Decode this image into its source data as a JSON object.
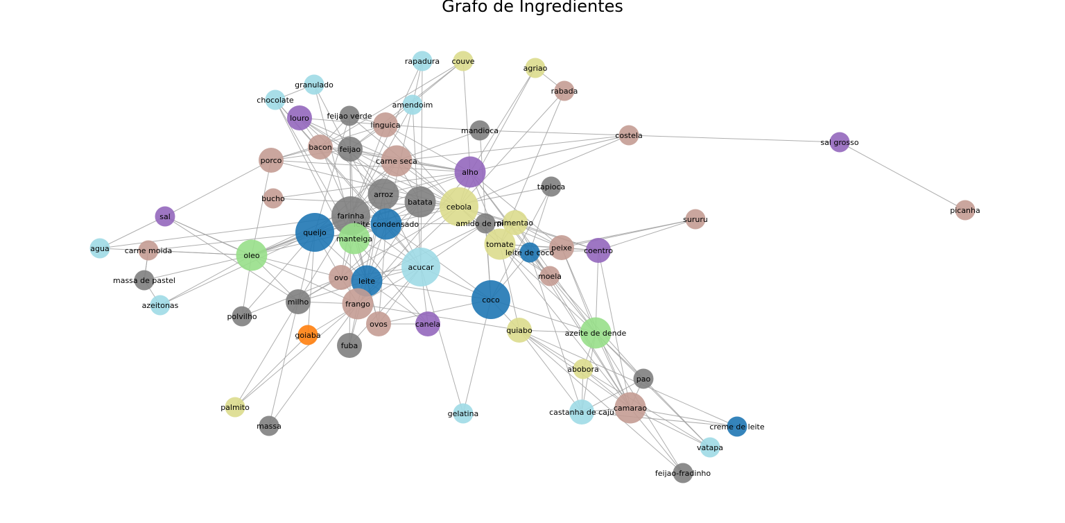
{
  "title": "Grafo de Ingredientes",
  "palette": {
    "gray": "#7f7f7f",
    "blue": "#1f77b4",
    "cyan": "#9edae5",
    "purple": "#9467bd",
    "brown": "#c49c94",
    "green": "#98df8a",
    "olive": "#dbdb8d",
    "orange": "#ff7f0e",
    "edge": "#a0a0a0"
  },
  "nodes": [
    {
      "id": "rapadura",
      "label": "rapadura",
      "color": "cyan",
      "size": "s"
    },
    {
      "id": "couve",
      "label": "couve",
      "color": "olive",
      "size": "s"
    },
    {
      "id": "agriao",
      "label": "agriao",
      "color": "olive",
      "size": "s"
    },
    {
      "id": "granulado",
      "label": "granulado",
      "color": "cyan",
      "size": "s"
    },
    {
      "id": "rabada",
      "label": "rabada",
      "color": "brown",
      "size": "s"
    },
    {
      "id": "chocolate",
      "label": "chocolate",
      "color": "cyan",
      "size": "s"
    },
    {
      "id": "amendoim",
      "label": "amendoim",
      "color": "cyan",
      "size": "s"
    },
    {
      "id": "feijao_verde",
      "label": "feijao verde",
      "color": "gray",
      "size": "s"
    },
    {
      "id": "louro",
      "label": "louro",
      "color": "purple",
      "size": "m"
    },
    {
      "id": "linguica",
      "label": "linguica",
      "color": "brown",
      "size": "m"
    },
    {
      "id": "mandioca",
      "label": "mandioca",
      "color": "gray",
      "size": "s"
    },
    {
      "id": "costela",
      "label": "costela",
      "color": "brown",
      "size": "s"
    },
    {
      "id": "sal_grosso",
      "label": "sal grosso",
      "color": "purple",
      "size": "s"
    },
    {
      "id": "bacon",
      "label": "bacon",
      "color": "brown",
      "size": "m"
    },
    {
      "id": "feijao",
      "label": "feijao",
      "color": "gray",
      "size": "m"
    },
    {
      "id": "porco",
      "label": "porco",
      "color": "brown",
      "size": "m"
    },
    {
      "id": "carne_seca",
      "label": "carne seca",
      "color": "brown",
      "size": "l"
    },
    {
      "id": "alho",
      "label": "alho",
      "color": "purple",
      "size": "l"
    },
    {
      "id": "tapioca",
      "label": "tapioca",
      "color": "gray",
      "size": "s"
    },
    {
      "id": "arroz",
      "label": "arroz",
      "color": "gray",
      "size": "l"
    },
    {
      "id": "bucho",
      "label": "bucho",
      "color": "brown",
      "size": "s"
    },
    {
      "id": "batata",
      "label": "batata",
      "color": "gray",
      "size": "l"
    },
    {
      "id": "cebola",
      "label": "cebola",
      "color": "olive",
      "size": "xl"
    },
    {
      "id": "picanha",
      "label": "picanha",
      "color": "brown",
      "size": "s"
    },
    {
      "id": "sal",
      "label": "sal",
      "color": "purple",
      "size": "s"
    },
    {
      "id": "farinha",
      "label": "farinha",
      "color": "gray",
      "size": "xl"
    },
    {
      "id": "leite_condensado",
      "label": "leite condensado",
      "color": "blue",
      "size": "l"
    },
    {
      "id": "amido_de_milho",
      "label": "amido de milho",
      "color": "gray",
      "size": "s"
    },
    {
      "id": "pimentao",
      "label": "pimentao",
      "color": "olive",
      "size": "m"
    },
    {
      "id": "sururu",
      "label": "sururu",
      "color": "brown",
      "size": "s"
    },
    {
      "id": "queijo",
      "label": "queijo",
      "color": "blue",
      "size": "xl"
    },
    {
      "id": "manteiga",
      "label": "manteiga",
      "color": "green",
      "size": "l"
    },
    {
      "id": "agua",
      "label": "agua",
      "color": "cyan",
      "size": "s"
    },
    {
      "id": "carne_moida",
      "label": "carne moida",
      "color": "brown",
      "size": "s"
    },
    {
      "id": "tomate",
      "label": "tomate",
      "color": "olive",
      "size": "l"
    },
    {
      "id": "peixe",
      "label": "peixe",
      "color": "brown",
      "size": "m"
    },
    {
      "id": "coentro",
      "label": "coentro",
      "color": "purple",
      "size": "m"
    },
    {
      "id": "oleo",
      "label": "oleo",
      "color": "green",
      "size": "l"
    },
    {
      "id": "leite_de_coco",
      "label": "leite de coco",
      "color": "blue",
      "size": "s"
    },
    {
      "id": "acucar",
      "label": "acucar",
      "color": "cyan",
      "size": "xl"
    },
    {
      "id": "moela",
      "label": "moela",
      "color": "brown",
      "size": "s"
    },
    {
      "id": "massa_de_pastel",
      "label": "massa de pastel",
      "color": "gray",
      "size": "s"
    },
    {
      "id": "ovo",
      "label": "ovo",
      "color": "brown",
      "size": "m"
    },
    {
      "id": "leite",
      "label": "leite",
      "color": "blue",
      "size": "l"
    },
    {
      "id": "azeitonas",
      "label": "azeitonas",
      "color": "cyan",
      "size": "s"
    },
    {
      "id": "coco",
      "label": "coco",
      "color": "blue",
      "size": "xl"
    },
    {
      "id": "milho",
      "label": "milho",
      "color": "gray",
      "size": "m"
    },
    {
      "id": "frango",
      "label": "frango",
      "color": "brown",
      "size": "l"
    },
    {
      "id": "polvilho",
      "label": "polvilho",
      "color": "gray",
      "size": "s"
    },
    {
      "id": "ovos",
      "label": "ovos",
      "color": "brown",
      "size": "m"
    },
    {
      "id": "canela",
      "label": "canela",
      "color": "purple",
      "size": "m"
    },
    {
      "id": "quiabo",
      "label": "quiabo",
      "color": "olive",
      "size": "m"
    },
    {
      "id": "azeite_de_dende",
      "label": "azeite de dende",
      "color": "green",
      "size": "l"
    },
    {
      "id": "goiaba",
      "label": "goiaba",
      "color": "orange",
      "size": "s"
    },
    {
      "id": "fuba",
      "label": "fuba",
      "color": "gray",
      "size": "m"
    },
    {
      "id": "abobora",
      "label": "abobora",
      "color": "olive",
      "size": "s"
    },
    {
      "id": "pao",
      "label": "pao",
      "color": "gray",
      "size": "s"
    },
    {
      "id": "palmito",
      "label": "palmito",
      "color": "olive",
      "size": "s"
    },
    {
      "id": "gelatina",
      "label": "gelatina",
      "color": "cyan",
      "size": "s"
    },
    {
      "id": "castanha_de_caju",
      "label": "castanha de caju",
      "color": "cyan",
      "size": "m"
    },
    {
      "id": "camarao",
      "label": "camarao",
      "color": "brown",
      "size": "l"
    },
    {
      "id": "creme_de_leite",
      "label": "creme de leite",
      "color": "blue",
      "size": "s"
    },
    {
      "id": "massa",
      "label": "massa",
      "color": "gray",
      "size": "s"
    },
    {
      "id": "vatapa",
      "label": "vatapa",
      "color": "cyan",
      "size": "s"
    },
    {
      "id": "feijao_fradinho",
      "label": "feijao-fradinho",
      "color": "gray",
      "size": "s"
    }
  ],
  "edges": [
    [
      "costela",
      "sal_grosso"
    ],
    [
      "sal_grosso",
      "picanha"
    ],
    [
      "costela",
      "alho"
    ],
    [
      "costela",
      "cebola"
    ],
    [
      "costela",
      "carne_seca"
    ],
    [
      "costela",
      "mandioca"
    ],
    [
      "mandioca",
      "carne_seca"
    ],
    [
      "mandioca",
      "linguica"
    ],
    [
      "mandioca",
      "coco"
    ],
    [
      "agriao",
      "rabada"
    ],
    [
      "agriao",
      "alho"
    ],
    [
      "agriao",
      "cebola"
    ],
    [
      "rabada",
      "cebola"
    ],
    [
      "rabada",
      "tomate"
    ],
    [
      "couve",
      "feijao"
    ],
    [
      "couve",
      "alho"
    ],
    [
      "couve",
      "bacon"
    ],
    [
      "couve",
      "linguica"
    ],
    [
      "rapadura",
      "acucar"
    ],
    [
      "rapadura",
      "amendoim"
    ],
    [
      "rapadura",
      "farinha"
    ],
    [
      "amendoim",
      "acucar"
    ],
    [
      "amendoim",
      "leite_condensado"
    ],
    [
      "amendoim",
      "farinha"
    ],
    [
      "granulado",
      "leite_condensado"
    ],
    [
      "granulado",
      "chocolate"
    ],
    [
      "granulado",
      "manteiga"
    ],
    [
      "chocolate",
      "leite_condensado"
    ],
    [
      "chocolate",
      "acucar"
    ],
    [
      "chocolate",
      "manteiga"
    ],
    [
      "chocolate",
      "leite"
    ],
    [
      "louro",
      "feijao"
    ],
    [
      "louro",
      "arroz"
    ],
    [
      "louro",
      "bacon"
    ],
    [
      "louro",
      "carne_seca"
    ],
    [
      "louro",
      "linguica"
    ],
    [
      "louro",
      "batata"
    ],
    [
      "feijao_verde",
      "farinha"
    ],
    [
      "feijao_verde",
      "queijo"
    ],
    [
      "feijao_verde",
      "linguica"
    ],
    [
      "feijao_verde",
      "manteiga"
    ],
    [
      "feijao_verde",
      "bacon"
    ],
    [
      "feijao_verde",
      "cebola"
    ],
    [
      "feijao",
      "bacon"
    ],
    [
      "feijao",
      "linguica"
    ],
    [
      "feijao",
      "carne_seca"
    ],
    [
      "feijao",
      "porco"
    ],
    [
      "feijao",
      "arroz"
    ],
    [
      "feijao",
      "alho"
    ],
    [
      "feijao",
      "cebola"
    ],
    [
      "feijao",
      "farinha"
    ],
    [
      "linguica",
      "porco"
    ],
    [
      "linguica",
      "cebola"
    ],
    [
      "linguica",
      "alho"
    ],
    [
      "linguica",
      "farinha"
    ],
    [
      "bacon",
      "porco"
    ],
    [
      "bacon",
      "farinha"
    ],
    [
      "bacon",
      "cebola"
    ],
    [
      "bacon",
      "alho"
    ],
    [
      "porco",
      "alho"
    ],
    [
      "porco",
      "cebola"
    ],
    [
      "porco",
      "sal"
    ],
    [
      "porco",
      "oleo"
    ],
    [
      "carne_seca",
      "cebola"
    ],
    [
      "carne_seca",
      "alho"
    ],
    [
      "carne_seca",
      "farinha"
    ],
    [
      "carne_seca",
      "manteiga"
    ],
    [
      "carne_seca",
      "queijo"
    ],
    [
      "carne_seca",
      "batata"
    ],
    [
      "alho",
      "cebola"
    ],
    [
      "alho",
      "arroz"
    ],
    [
      "alho",
      "tomate"
    ],
    [
      "alho",
      "oleo"
    ],
    [
      "alho",
      "peixe"
    ],
    [
      "alho",
      "moela"
    ],
    [
      "alho",
      "frango"
    ],
    [
      "alho",
      "leite_de_coco"
    ],
    [
      "bucho",
      "cebola"
    ],
    [
      "bucho",
      "alho"
    ],
    [
      "arroz",
      "leite"
    ],
    [
      "arroz",
      "acucar"
    ],
    [
      "arroz",
      "cebola"
    ],
    [
      "arroz",
      "frango"
    ],
    [
      "arroz",
      "oleo"
    ],
    [
      "arroz",
      "leite_condensado"
    ],
    [
      "batata",
      "cebola"
    ],
    [
      "batata",
      "oleo"
    ],
    [
      "batata",
      "queijo"
    ],
    [
      "batata",
      "leite"
    ],
    [
      "batata",
      "ovo"
    ],
    [
      "batata",
      "manteiga"
    ],
    [
      "cebola",
      "tomate"
    ],
    [
      "cebola",
      "oleo"
    ],
    [
      "cebola",
      "coentro"
    ],
    [
      "cebola",
      "pimentao"
    ],
    [
      "cebola",
      "peixe"
    ],
    [
      "cebola",
      "frango"
    ],
    [
      "cebola",
      "azeite_de_dende"
    ],
    [
      "cebola",
      "milho"
    ],
    [
      "tapioca",
      "coco"
    ],
    [
      "tapioca",
      "leite_de_coco"
    ],
    [
      "tapioca",
      "queijo"
    ],
    [
      "sal",
      "oleo"
    ],
    [
      "sal",
      "agua"
    ],
    [
      "sal",
      "milho"
    ],
    [
      "sal",
      "frango"
    ],
    [
      "agua",
      "farinha"
    ],
    [
      "agua",
      "oleo"
    ],
    [
      "farinha",
      "leite"
    ],
    [
      "farinha",
      "ovo"
    ],
    [
      "farinha",
      "acucar"
    ],
    [
      "farinha",
      "manteiga"
    ],
    [
      "farinha",
      "oleo"
    ],
    [
      "farinha",
      "queijo"
    ],
    [
      "farinha",
      "milho"
    ],
    [
      "farinha",
      "fuba"
    ],
    [
      "leite_condensado",
      "coco"
    ],
    [
      "leite_condensado",
      "leite"
    ],
    [
      "leite_condensado",
      "manteiga"
    ],
    [
      "leite_condensado",
      "acucar"
    ],
    [
      "leite_condensado",
      "ovos"
    ],
    [
      "amido_de_milho",
      "leite"
    ],
    [
      "amido_de_milho",
      "acucar"
    ],
    [
      "amido_de_milho",
      "coco"
    ],
    [
      "amido_de_milho",
      "leite_condensado"
    ],
    [
      "pimentao",
      "tomate"
    ],
    [
      "pimentao",
      "coentro"
    ],
    [
      "pimentao",
      "peixe"
    ],
    [
      "pimentao",
      "camarao"
    ],
    [
      "pimentao",
      "azeite_de_dende"
    ],
    [
      "sururu",
      "coentro"
    ],
    [
      "sururu",
      "leite_de_coco"
    ],
    [
      "sururu",
      "peixe"
    ],
    [
      "queijo",
      "leite"
    ],
    [
      "queijo",
      "ovo"
    ],
    [
      "queijo",
      "oleo"
    ],
    [
      "queijo",
      "manteiga"
    ],
    [
      "queijo",
      "milho"
    ],
    [
      "queijo",
      "carne_moida"
    ],
    [
      "queijo",
      "azeitonas"
    ],
    [
      "manteiga",
      "leite"
    ],
    [
      "manteiga",
      "acucar"
    ],
    [
      "manteiga",
      "ovo"
    ],
    [
      "manteiga",
      "canela"
    ],
    [
      "carne_moida",
      "oleo"
    ],
    [
      "carne_moida",
      "massa_de_pastel"
    ],
    [
      "tomate",
      "coentro"
    ],
    [
      "tomate",
      "peixe"
    ],
    [
      "tomate",
      "camarao"
    ],
    [
      "tomate",
      "leite_de_coco"
    ],
    [
      "tomate",
      "quiabo"
    ],
    [
      "peixe",
      "coentro"
    ],
    [
      "peixe",
      "leite_de_coco"
    ],
    [
      "peixe",
      "azeite_de_dende"
    ],
    [
      "peixe",
      "camarao"
    ],
    [
      "coentro",
      "leite_de_coco"
    ],
    [
      "coentro",
      "azeite_de_dende"
    ],
    [
      "coentro",
      "camarao"
    ],
    [
      "oleo",
      "azeitonas"
    ],
    [
      "oleo",
      "massa_de_pastel"
    ],
    [
      "oleo",
      "milho"
    ],
    [
      "oleo",
      "polvilho"
    ],
    [
      "oleo",
      "ovo"
    ],
    [
      "leite_de_coco",
      "camarao"
    ],
    [
      "leite_de_coco",
      "azeite_de_dende"
    ],
    [
      "leite_de_coco",
      "coco"
    ],
    [
      "acucar",
      "leite"
    ],
    [
      "acucar",
      "ovo"
    ],
    [
      "acucar",
      "coco"
    ],
    [
      "acucar",
      "canela"
    ],
    [
      "acucar",
      "ovos"
    ],
    [
      "acucar",
      "gelatina"
    ],
    [
      "acucar",
      "goiaba"
    ],
    [
      "acucar",
      "fuba"
    ],
    [
      "moela",
      "cebola"
    ],
    [
      "moela",
      "tomate"
    ],
    [
      "massa_de_pastel",
      "azeitonas"
    ],
    [
      "massa_de_pastel",
      "carne_moida"
    ],
    [
      "ovo",
      "leite"
    ],
    [
      "ovo",
      "milho"
    ],
    [
      "ovo",
      "frango"
    ],
    [
      "ovo",
      "polvilho"
    ],
    [
      "leite",
      "coco"
    ],
    [
      "leite",
      "ovos"
    ],
    [
      "leite",
      "fuba"
    ],
    [
      "leite",
      "milho"
    ],
    [
      "leite",
      "canela"
    ],
    [
      "coco",
      "gelatina"
    ],
    [
      "coco",
      "quiabo"
    ],
    [
      "coco",
      "ovos"
    ],
    [
      "coco",
      "azeite_de_dende"
    ],
    [
      "milho",
      "frango"
    ],
    [
      "milho",
      "massa"
    ],
    [
      "milho",
      "palmito"
    ],
    [
      "frango",
      "palmito"
    ],
    [
      "frango",
      "massa"
    ],
    [
      "frango",
      "quiabo"
    ],
    [
      "frango",
      "fuba"
    ],
    [
      "polvilho",
      "queijo"
    ],
    [
      "ovos",
      "canela"
    ],
    [
      "ovos",
      "farinha"
    ],
    [
      "quiabo",
      "camarao"
    ],
    [
      "quiabo",
      "azeite_de_dende"
    ],
    [
      "quiabo",
      "castanha_de_caju"
    ],
    [
      "azeite_de_dende",
      "camarao"
    ],
    [
      "azeite_de_dende",
      "castanha_de_caju"
    ],
    [
      "azeite_de_dende",
      "pao"
    ],
    [
      "azeite_de_dende",
      "vatapa"
    ],
    [
      "azeite_de_dende",
      "abobora"
    ],
    [
      "azeite_de_dende",
      "feijao_fradinho"
    ],
    [
      "goiaba",
      "palmito"
    ],
    [
      "goiaba",
      "queijo"
    ],
    [
      "abobora",
      "camarao"
    ],
    [
      "abobora",
      "castanha_de_caju"
    ],
    [
      "pao",
      "camarao"
    ],
    [
      "pao",
      "vatapa"
    ],
    [
      "pao",
      "castanha_de_caju"
    ],
    [
      "pao",
      "leite_de_coco"
    ],
    [
      "camarao",
      "castanha_de_caju"
    ],
    [
      "camarao",
      "creme_de_leite"
    ],
    [
      "camarao",
      "vatapa"
    ],
    [
      "camarao",
      "feijao_fradinho"
    ],
    [
      "castanha_de_caju",
      "creme_de_leite"
    ],
    [
      "castanha_de_caju",
      "leite_de_coco"
    ],
    [
      "creme_de_leite",
      "quiabo"
    ],
    [
      "vatapa",
      "quiabo"
    ],
    [
      "feijao_fradinho",
      "quiabo"
    ]
  ]
}
